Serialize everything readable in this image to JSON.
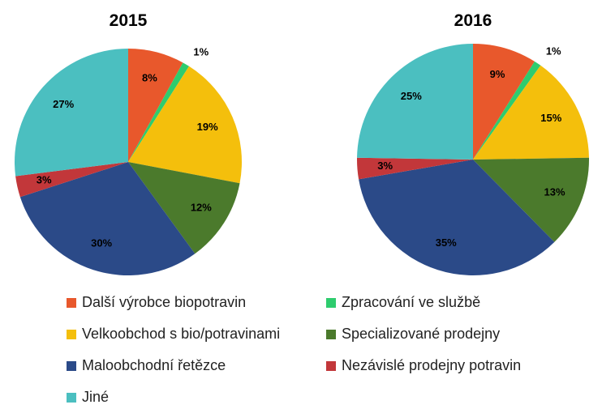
{
  "chart_data": [
    {
      "type": "pie",
      "title": "2015",
      "categories": [
        "Další výrobce biopotravin",
        "Zpracování ve službě",
        "Velkoobchod s bio/potravinami",
        "Specializované prodejny",
        "Maloobchodní řetězce",
        "Nezávislé prodejny potravin",
        "Jiné"
      ],
      "values": [
        8,
        1,
        19,
        12,
        30,
        3,
        27
      ],
      "value_labels": [
        "8%",
        "1%",
        "19%",
        "12%",
        "30%",
        "3%",
        "27%"
      ],
      "colors": [
        "#e8582c",
        "#2ecc6e",
        "#f4bf0c",
        "#4b7a2c",
        "#2b4a88",
        "#c2373a",
        "#4bbfc0"
      ]
    },
    {
      "type": "pie",
      "title": "2016",
      "categories": [
        "Další výrobce biopotravin",
        "Zpracování ve službě",
        "Velkoobchod s bio/potravinami",
        "Specializované prodejny",
        "Maloobchodní řetězce",
        "Nezávislé prodejny potravin",
        "Jiné"
      ],
      "values": [
        9,
        1,
        15,
        13,
        35,
        3,
        25
      ],
      "value_labels": [
        "9%",
        "1%",
        "15%",
        "13%",
        "35%",
        "3%",
        "25%"
      ],
      "colors": [
        "#e8582c",
        "#2ecc6e",
        "#f4bf0c",
        "#4b7a2c",
        "#2b4a88",
        "#c2373a",
        "#4bbfc0"
      ]
    }
  ]
}
